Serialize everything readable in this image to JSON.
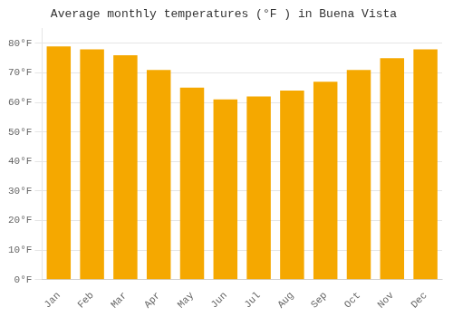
{
  "chart_data": {
    "type": "bar",
    "title": "Average monthly temperatures (°F ) in Buena Vista",
    "categories": [
      "Jan",
      "Feb",
      "Mar",
      "Apr",
      "May",
      "Jun",
      "Jul",
      "Aug",
      "Sep",
      "Oct",
      "Nov",
      "Dec"
    ],
    "values": [
      79,
      78,
      76,
      71,
      65,
      61,
      62,
      64,
      67,
      71,
      75,
      78
    ],
    "color": "#F5A800",
    "ylim": [
      0,
      85
    ],
    "yticks": [
      {
        "value": 0,
        "label": "0°F"
      },
      {
        "value": 10,
        "label": "10°F"
      },
      {
        "value": 20,
        "label": "20°F"
      },
      {
        "value": 30,
        "label": "30°F"
      },
      {
        "value": 40,
        "label": "40°F"
      },
      {
        "value": 50,
        "label": "50°F"
      },
      {
        "value": 60,
        "label": "60°F"
      },
      {
        "value": 70,
        "label": "70°F"
      },
      {
        "value": 80,
        "label": "80°F"
      }
    ],
    "grid": true
  }
}
